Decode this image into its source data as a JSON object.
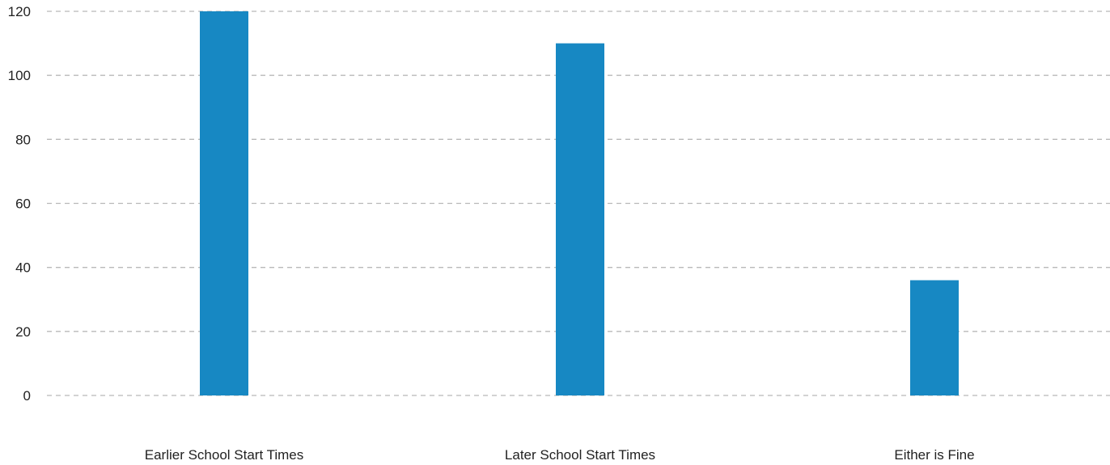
{
  "chart_data": {
    "type": "bar",
    "title": "",
    "xlabel": "",
    "ylabel": "",
    "categories": [
      "Earlier School Start Times",
      "Later School Start Times",
      "Either is Fine"
    ],
    "values": [
      120,
      110,
      36
    ],
    "ylim": [
      0,
      120
    ],
    "yticks": [
      0,
      20,
      40,
      60,
      80,
      100,
      120
    ],
    "grid": true,
    "legend": "none",
    "bar_color": "#1788c3"
  }
}
